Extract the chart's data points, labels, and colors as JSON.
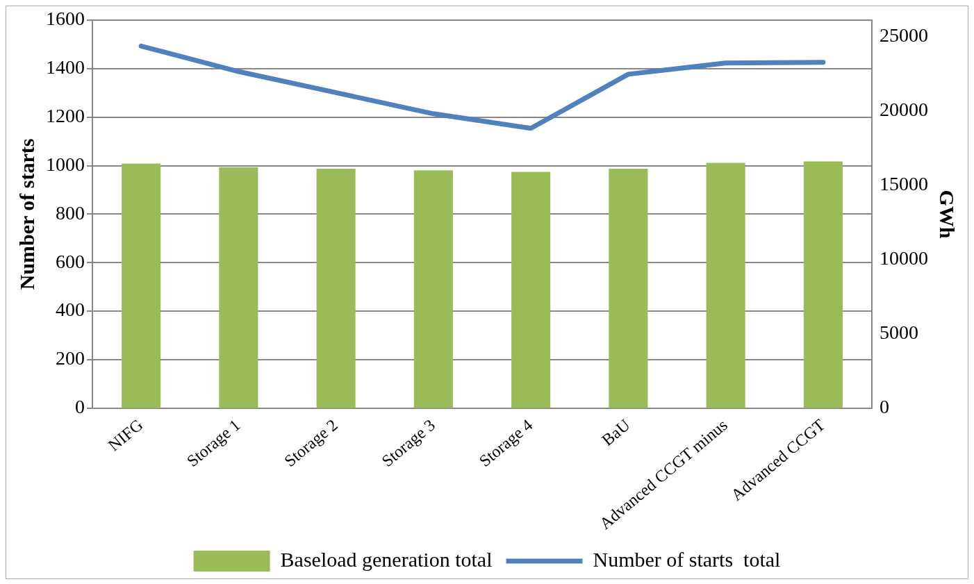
{
  "chart_data": {
    "type": "bar",
    "categories": [
      "NIFG",
      "Storage 1",
      "Storage 2",
      "Storage 3",
      "Storage 4",
      "BaU",
      "Advanced CCGT minus",
      "Advanced CCGT"
    ],
    "series": [
      {
        "name": "Baseload generation total",
        "axis": "y2",
        "color": "#9bbb59",
        "values": [
          16450,
          16200,
          16100,
          16000,
          15900,
          16100,
          16500,
          16600
        ]
      },
      {
        "name": "Number of starts  total",
        "type": "line",
        "axis": "y",
        "color": "#4f81bd",
        "values": [
          1493,
          1388,
          1301,
          1214,
          1154,
          1377,
          1423,
          1426
        ]
      }
    ],
    "ylabel": "Number of starts",
    "y2label": "GWh",
    "ylim": [
      0,
      1600
    ],
    "yticks": [
      0,
      200,
      400,
      600,
      800,
      1000,
      1200,
      1400,
      1600
    ],
    "y2lim": [
      0,
      26100
    ],
    "y2ticks": [
      0,
      5000,
      10000,
      15000,
      20000,
      25000
    ],
    "grid": "y",
    "legend": "bottom",
    "marker": "none",
    "line_style": "solid"
  }
}
